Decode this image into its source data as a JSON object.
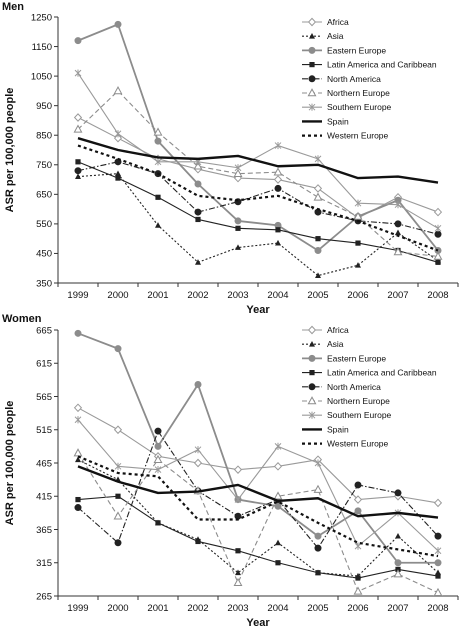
{
  "chart_data": [
    {
      "type": "line",
      "title": "Men",
      "xlabel": "Year",
      "ylabel": "ASR per 100,000 people",
      "x": [
        "1999",
        "2000",
        "2001",
        "2002",
        "2003",
        "2004",
        "2005",
        "2006",
        "2007",
        "2008"
      ],
      "ylim": [
        350,
        1250
      ],
      "yticks": [
        "350",
        "450",
        "550",
        "650",
        "750",
        "850",
        "950",
        "1050",
        "1150",
        "1250"
      ],
      "grid": false,
      "legend_position": "top-right",
      "series": [
        {
          "name": "Africa",
          "color": "#9a9a9a",
          "dash": "",
          "marker": "diamond-open",
          "values": [
            910,
            840,
            770,
            735,
            705,
            700,
            670,
            570,
            640,
            590
          ]
        },
        {
          "name": "Asia",
          "color": "#222222",
          "dash": "2,2",
          "marker": "triangle",
          "values": [
            710,
            720,
            545,
            420,
            470,
            485,
            375,
            410,
            520,
            425
          ]
        },
        {
          "name": "Eastern Europe",
          "color": "#8c8c8c",
          "dash": "",
          "marker": "circle",
          "width": 1.8,
          "values": [
            1170,
            1225,
            830,
            685,
            560,
            545,
            460,
            575,
            630,
            460
          ]
        },
        {
          "name": "Latin America and Caribbean",
          "color": "#222222",
          "dash": "",
          "marker": "square",
          "values": [
            760,
            705,
            640,
            565,
            535,
            530,
            500,
            485,
            460,
            420
          ]
        },
        {
          "name": "North America",
          "color": "#222222",
          "dash": "6,2,1.5,2",
          "marker": "circle",
          "values": [
            730,
            760,
            720,
            590,
            625,
            670,
            590,
            560,
            550,
            515
          ]
        },
        {
          "name": "Northern Europe",
          "color": "#8c8c8c",
          "dash": "5,3",
          "marker": "triangle-open",
          "values": [
            870,
            1000,
            860,
            745,
            720,
            725,
            640,
            575,
            455,
            440
          ]
        },
        {
          "name": "Southern Europe",
          "color": "#9a9a9a",
          "dash": "",
          "marker": "star",
          "values": [
            1060,
            855,
            760,
            760,
            740,
            815,
            770,
            620,
            615,
            535
          ]
        },
        {
          "name": "Spain",
          "color": "#111111",
          "dash": "",
          "marker": "",
          "width": 2.4,
          "values": [
            840,
            800,
            775,
            770,
            780,
            745,
            750,
            705,
            710,
            690
          ]
        },
        {
          "name": "Western Europe",
          "color": "#111111",
          "dash": "3,3",
          "marker": "",
          "width": 2.2,
          "values": [
            815,
            770,
            720,
            645,
            630,
            645,
            600,
            560,
            510,
            460
          ]
        }
      ]
    },
    {
      "type": "line",
      "title": "Women",
      "xlabel": "Year",
      "ylabel": "ASR per 100,000 people",
      "x": [
        "1999",
        "2000",
        "2001",
        "2002",
        "2003",
        "2004",
        "2005",
        "2006",
        "2007",
        "2008"
      ],
      "ylim": [
        265,
        665
      ],
      "yticks": [
        "265",
        "315",
        "365",
        "415",
        "465",
        "515",
        "565",
        "615",
        "665"
      ],
      "grid": false,
      "legend_position": "top-right",
      "series": [
        {
          "name": "Africa",
          "color": "#9a9a9a",
          "dash": "",
          "marker": "diamond-open",
          "values": [
            548,
            515,
            475,
            465,
            455,
            460,
            470,
            410,
            415,
            405
          ]
        },
        {
          "name": "Asia",
          "color": "#222222",
          "dash": "2,2",
          "marker": "triangle",
          "values": [
            470,
            440,
            375,
            350,
            300,
            345,
            300,
            295,
            355,
            300
          ]
        },
        {
          "name": "Eastern Europe",
          "color": "#8c8c8c",
          "dash": "",
          "marker": "circle",
          "width": 1.8,
          "values": [
            660,
            637,
            490,
            583,
            410,
            400,
            355,
            393,
            315,
            315
          ]
        },
        {
          "name": "Latin America and Caribbean",
          "color": "#222222",
          "dash": "",
          "marker": "square",
          "values": [
            410,
            415,
            375,
            347,
            333,
            315,
            300,
            292,
            305,
            295
          ]
        },
        {
          "name": "North America",
          "color": "#222222",
          "dash": "6,2,1.5,2",
          "marker": "circle",
          "values": [
            398,
            345,
            513,
            423,
            385,
            410,
            337,
            432,
            420,
            355
          ]
        },
        {
          "name": "Northern Europe",
          "color": "#8c8c8c",
          "dash": "5,3",
          "marker": "triangle-open",
          "values": [
            480,
            385,
            470,
            423,
            285,
            415,
            425,
            272,
            298,
            270
          ]
        },
        {
          "name": "Southern Europe",
          "color": "#9a9a9a",
          "dash": "",
          "marker": "star",
          "values": [
            530,
            460,
            455,
            485,
            410,
            490,
            465,
            340,
            390,
            333
          ]
        },
        {
          "name": "Spain",
          "color": "#111111",
          "dash": "",
          "marker": "",
          "width": 2.4,
          "values": [
            460,
            437,
            420,
            422,
            432,
            408,
            412,
            385,
            390,
            383
          ]
        },
        {
          "name": "Western Europe",
          "color": "#111111",
          "dash": "3,3",
          "marker": "",
          "width": 2.2,
          "values": [
            475,
            450,
            445,
            380,
            380,
            407,
            375,
            345,
            335,
            325
          ]
        }
      ]
    }
  ]
}
